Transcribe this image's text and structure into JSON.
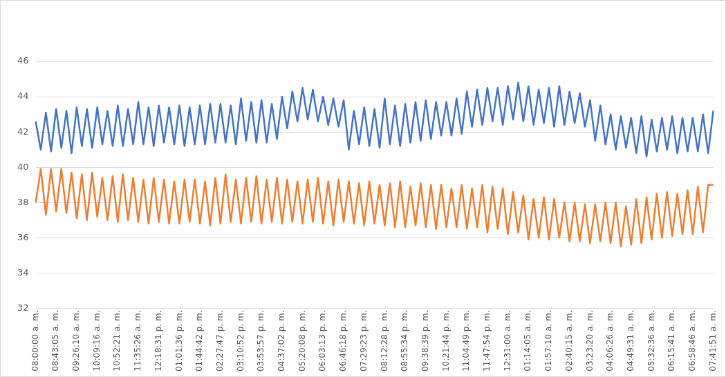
{
  "chart_data": {
    "type": "line",
    "categories": [
      "08:00:00 a. m.",
      null,
      null,
      null,
      "08:43:05 a. m.",
      null,
      null,
      null,
      "09:26:10 a. m.",
      null,
      null,
      null,
      "10:09:16 a. m.",
      null,
      null,
      null,
      "10:52:21 a. m.",
      null,
      null,
      null,
      "11:35:26 a. m.",
      null,
      null,
      null,
      "12:18:31 p. m.",
      null,
      null,
      null,
      "01:01:36 p. m.",
      null,
      null,
      null,
      "01:44:42 p. m.",
      null,
      null,
      null,
      "02:27:47 p. m.",
      null,
      null,
      null,
      "03:10:52 p. m.",
      null,
      null,
      null,
      "03:53:57 p. m.",
      null,
      null,
      null,
      "04:37:02 p. m.",
      null,
      null,
      null,
      "05:20:08 p. m.",
      null,
      null,
      null,
      "06:03:13 p. m.",
      null,
      null,
      null,
      "06:46:18 p. m.",
      null,
      null,
      null,
      "07:29:23 p. m.",
      null,
      null,
      null,
      "08:12:28 p. m.",
      null,
      null,
      null,
      "08:55:34 p. m.",
      null,
      null,
      null,
      "09:38:39 p. m.",
      null,
      null,
      null,
      "10:21:44 p. m.",
      null,
      null,
      null,
      "11:04:49 p. m.",
      null,
      null,
      null,
      "11:47:54 p. m.",
      null,
      null,
      null,
      "12:31:00 a. m.",
      null,
      null,
      null,
      "01:14:05 a. m.",
      null,
      null,
      null,
      "01:57:10 a. m.",
      null,
      null,
      null,
      "02:40:15 a. m.",
      null,
      null,
      null,
      "03:23:20 a. m.",
      null,
      null,
      null,
      "04:06:26 a. m.",
      null,
      null,
      null,
      "04:49:31 a. m.",
      null,
      null,
      null,
      "05:32:36 a. m.",
      null,
      null,
      null,
      "06:15:41 a. m.",
      null,
      null,
      null,
      "06:58:46 a. m.",
      null,
      null,
      null,
      "07:41:51 a. m."
    ],
    "series": [
      {
        "color": "#4472c4",
        "values": [
          42.6,
          41.0,
          43.1,
          40.9,
          43.3,
          41.1,
          43.2,
          40.8,
          43.4,
          41.2,
          43.3,
          41.1,
          43.4,
          41.3,
          43.2,
          41.2,
          43.5,
          41.2,
          43.3,
          41.3,
          43.7,
          41.3,
          43.4,
          41.2,
          43.5,
          41.4,
          43.4,
          41.3,
          43.5,
          41.2,
          43.4,
          41.3,
          43.5,
          41.3,
          43.6,
          41.4,
          43.6,
          41.4,
          43.5,
          41.3,
          43.9,
          41.5,
          43.7,
          41.4,
          43.8,
          41.4,
          43.6,
          41.6,
          44.0,
          42.2,
          44.3,
          42.6,
          44.5,
          42.7,
          44.4,
          42.6,
          44.0,
          42.4,
          43.9,
          42.3,
          43.8,
          41.0,
          43.2,
          41.3,
          43.4,
          41.2,
          43.3,
          41.1,
          43.9,
          41.3,
          43.5,
          41.2,
          43.6,
          41.4,
          43.7,
          41.5,
          43.8,
          41.6,
          43.7,
          41.8,
          43.7,
          41.8,
          43.9,
          41.9,
          44.3,
          42.3,
          44.4,
          42.4,
          44.5,
          42.6,
          44.5,
          42.4,
          44.6,
          42.7,
          44.8,
          42.6,
          44.6,
          42.4,
          44.4,
          42.5,
          44.5,
          42.3,
          44.6,
          42.4,
          44.3,
          42.5,
          44.2,
          42.3,
          43.8,
          41.5,
          43.5,
          41.3,
          43.0,
          41.0,
          42.9,
          41.1,
          42.8,
          40.8,
          42.9,
          40.6,
          42.7,
          40.9,
          42.8,
          41.0,
          42.9,
          40.8,
          42.8,
          40.9,
          42.8,
          40.9,
          43.0,
          40.8,
          43.2
        ]
      },
      {
        "color": "#ed7d31",
        "values": [
          38.0,
          39.9,
          37.3,
          39.9,
          37.5,
          39.9,
          37.4,
          39.7,
          37.1,
          39.6,
          37.0,
          39.7,
          37.2,
          39.4,
          37.0,
          39.5,
          36.9,
          39.6,
          37.0,
          39.4,
          36.9,
          39.3,
          36.8,
          39.4,
          36.9,
          39.3,
          36.8,
          39.2,
          36.8,
          39.3,
          36.9,
          39.3,
          36.8,
          39.2,
          36.7,
          39.4,
          36.8,
          39.6,
          36.9,
          39.3,
          36.8,
          39.4,
          36.9,
          39.5,
          36.8,
          39.3,
          36.9,
          39.4,
          36.8,
          39.3,
          36.9,
          39.2,
          36.8,
          39.3,
          36.9,
          39.4,
          36.8,
          39.2,
          36.7,
          39.3,
          36.9,
          39.2,
          36.8,
          39.1,
          36.7,
          39.2,
          36.8,
          39.0,
          36.7,
          39.1,
          36.6,
          39.2,
          36.6,
          38.9,
          36.7,
          39.1,
          36.6,
          39.0,
          36.5,
          39.0,
          36.6,
          38.8,
          36.6,
          39.0,
          36.5,
          38.8,
          36.6,
          39.0,
          36.3,
          38.9,
          36.5,
          38.8,
          36.2,
          38.6,
          36.3,
          38.4,
          35.9,
          38.2,
          36.0,
          38.3,
          35.9,
          38.2,
          36.0,
          38.0,
          35.8,
          38.0,
          35.8,
          37.9,
          35.7,
          37.9,
          35.8,
          38.0,
          35.7,
          38.0,
          35.5,
          37.8,
          35.6,
          38.2,
          35.7,
          38.3,
          35.9,
          38.5,
          36.0,
          38.6,
          36.1,
          38.5,
          36.2,
          38.7,
          36.2,
          38.9,
          36.3,
          39.0,
          39.0
        ]
      }
    ],
    "ylim": [
      32,
      46
    ],
    "yticks": [
      32,
      34,
      36,
      38,
      40,
      42,
      44,
      46
    ],
    "grid": "y",
    "legend": false,
    "marker": "none",
    "line_style": "solid"
  }
}
